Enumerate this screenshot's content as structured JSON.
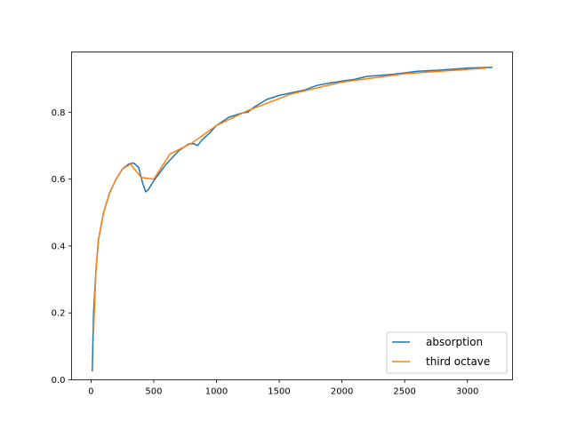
{
  "chart_data": {
    "type": "line",
    "title": "",
    "xlabel": "",
    "ylabel": "",
    "xlim": [
      -155,
      3360
    ],
    "ylim": [
      0,
      0.98
    ],
    "xticks": [
      0,
      500,
      1000,
      1500,
      2000,
      2500,
      3000
    ],
    "yticks": [
      0.0,
      0.2,
      0.4,
      0.6,
      0.8
    ],
    "xtick_labels": [
      "0",
      "500",
      "1000",
      "1500",
      "2000",
      "2500",
      "3000"
    ],
    "ytick_labels": [
      "0.0",
      "0.2",
      "0.4",
      "0.6",
      "0.8"
    ],
    "grid": false,
    "legend_position": "lower-right",
    "series": [
      {
        "name": "absorption",
        "color": "#1f77b4",
        "x": [
          10,
          20,
          40,
          60,
          100,
          150,
          200,
          250,
          300,
          340,
          380,
          410,
          435,
          460,
          500,
          600,
          700,
          780,
          820,
          850,
          880,
          950,
          1000,
          1100,
          1200,
          1250,
          1300,
          1400,
          1500,
          1600,
          1700,
          1800,
          1900,
          2000,
          2100,
          2200,
          2400,
          2600,
          2800,
          3000,
          3200
        ],
        "y": [
          0.025,
          0.2,
          0.33,
          0.42,
          0.5,
          0.56,
          0.6,
          0.63,
          0.645,
          0.648,
          0.635,
          0.59,
          0.562,
          0.57,
          0.595,
          0.645,
          0.685,
          0.705,
          0.706,
          0.7,
          0.715,
          0.74,
          0.76,
          0.785,
          0.797,
          0.8,
          0.815,
          0.838,
          0.85,
          0.858,
          0.866,
          0.88,
          0.887,
          0.893,
          0.898,
          0.907,
          0.913,
          0.922,
          0.926,
          0.932,
          0.934
        ]
      },
      {
        "name": "third octave",
        "color": "#ff7f0e",
        "x": [
          20,
          40,
          60,
          100,
          150,
          200,
          250,
          315,
          400,
          500,
          630,
          800,
          1000,
          1250,
          1600,
          2000,
          2500,
          3150
        ],
        "y": [
          0.14,
          0.33,
          0.42,
          0.5,
          0.56,
          0.6,
          0.63,
          0.645,
          0.605,
          0.6,
          0.675,
          0.707,
          0.76,
          0.805,
          0.855,
          0.89,
          0.915,
          0.932
        ]
      }
    ]
  }
}
